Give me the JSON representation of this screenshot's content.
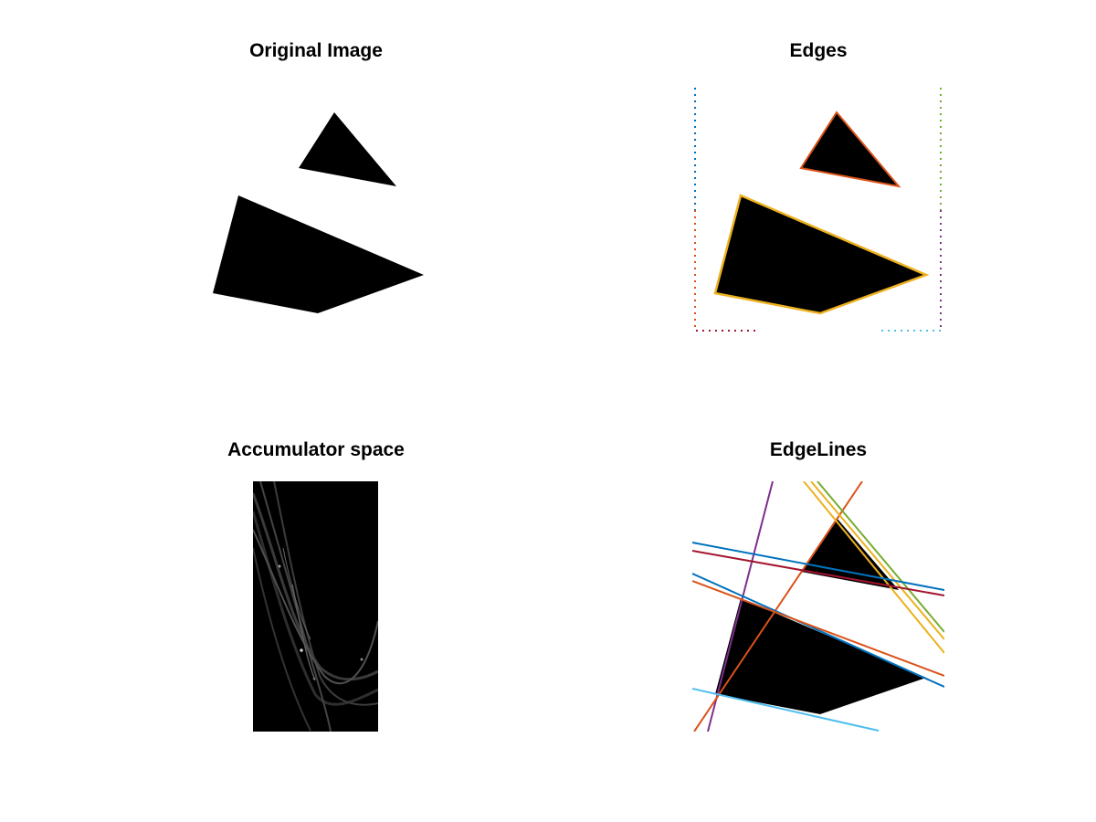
{
  "figure": {
    "panels": [
      {
        "id": "original",
        "title": "Original Image"
      },
      {
        "id": "edges",
        "title": "Edges"
      },
      {
        "id": "accumulator",
        "title": "Accumulator space"
      },
      {
        "id": "edgelines",
        "title": "EdgeLines"
      }
    ]
  },
  "colors": {
    "shape_fill": "#000000",
    "edge_triangle": "#d95319",
    "edge_quad": "#edb120",
    "line_blue": "#0072bd",
    "line_orange": "#d95319",
    "line_yellow": "#edb120",
    "line_purple": "#7e2f8e",
    "line_green": "#77ac30",
    "line_cyan": "#4dbeee",
    "line_maroon": "#a2142f"
  }
}
